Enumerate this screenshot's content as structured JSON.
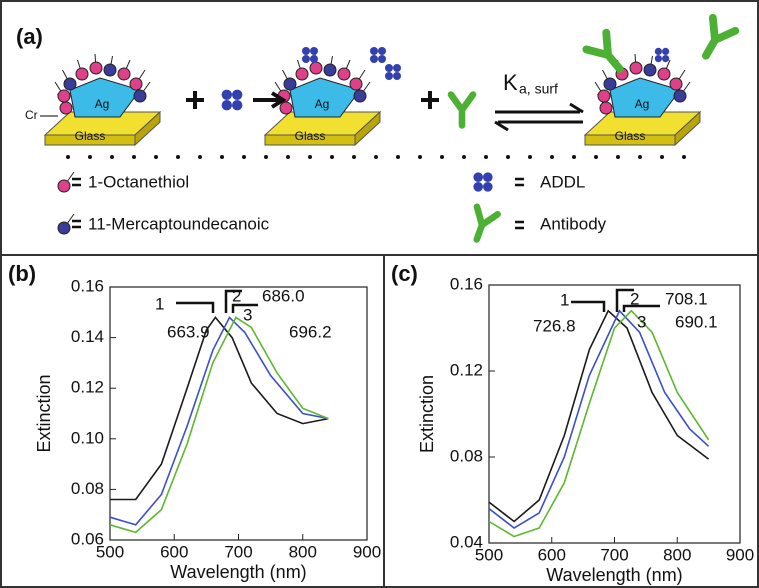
{
  "schematic": {
    "panel_label": "(a)",
    "cr_label": "Cr",
    "ag_labels": [
      "Ag",
      "Ag",
      "Ag"
    ],
    "glass_labels": [
      "Glass",
      "Glass",
      "Glass"
    ],
    "rate_constant": "K",
    "rate_subscript": "a, surf",
    "legend": [
      "1-Octanethiol",
      "11-Mercaptoundecanoic",
      "ADDL",
      "Antibody"
    ]
  },
  "chart_data": [
    {
      "type": "line",
      "panel_label": "(b)",
      "x_label": "Wavelength (nm)",
      "y_label": "Extinction",
      "xlim": [
        500,
        900
      ],
      "xticks": [
        500,
        600,
        700,
        800,
        900
      ],
      "ylim": [
        0.06,
        0.16
      ],
      "yticks": [
        {
          "value": 0.06,
          "label": "0.06"
        },
        {
          "value": 0.08,
          "label": "0.08"
        },
        {
          "value": 0.1,
          "label": "0.10"
        },
        {
          "value": 0.12,
          "label": "0.12"
        },
        {
          "value": 0.14,
          "label": "0.14"
        },
        {
          "value": 0.16,
          "label": "0.16"
        }
      ],
      "series": [
        {
          "color": "#1a1a1a",
          "x": [
            500,
            540,
            580,
            620,
            650,
            664,
            690,
            720,
            760,
            800,
            840
          ],
          "values": [
            0.076,
            0.076,
            0.09,
            0.12,
            0.143,
            0.148,
            0.14,
            0.122,
            0.11,
            0.106,
            0.108
          ]
        },
        {
          "color": "#3a4fd0",
          "x": [
            500,
            540,
            580,
            620,
            660,
            686,
            710,
            750,
            800,
            840
          ],
          "values": [
            0.069,
            0.066,
            0.078,
            0.105,
            0.135,
            0.148,
            0.142,
            0.125,
            0.11,
            0.108
          ]
        },
        {
          "color": "#5cb82c",
          "x": [
            500,
            540,
            580,
            620,
            660,
            696,
            720,
            760,
            800,
            840
          ],
          "values": [
            0.066,
            0.063,
            0.072,
            0.098,
            0.13,
            0.148,
            0.144,
            0.126,
            0.112,
            0.108
          ]
        }
      ],
      "annotations": [
        "1",
        "2",
        "686.0",
        "3",
        "663.9",
        "696.2"
      ]
    },
    {
      "type": "line",
      "panel_label": "(c)",
      "x_label": "Wavelength (nm)",
      "y_label": "Extinction",
      "xlim": [
        500,
        900
      ],
      "xticks": [
        500,
        600,
        700,
        800,
        900
      ],
      "ylim": [
        0.04,
        0.16
      ],
      "yticks": [
        0.04,
        0.08,
        0.12,
        0.16
      ],
      "series": [
        {
          "color": "#1a1a1a",
          "x": [
            500,
            540,
            580,
            620,
            660,
            690,
            720,
            760,
            800,
            850
          ],
          "values": [
            0.059,
            0.05,
            0.06,
            0.09,
            0.13,
            0.148,
            0.14,
            0.11,
            0.09,
            0.079
          ]
        },
        {
          "color": "#3a4fd0",
          "x": [
            500,
            540,
            580,
            620,
            660,
            708,
            740,
            780,
            820,
            850
          ],
          "values": [
            0.056,
            0.047,
            0.054,
            0.08,
            0.118,
            0.148,
            0.138,
            0.11,
            0.093,
            0.085
          ]
        },
        {
          "color": "#5cb82c",
          "x": [
            500,
            540,
            580,
            620,
            660,
            700,
            727,
            760,
            800,
            850
          ],
          "values": [
            0.05,
            0.043,
            0.047,
            0.068,
            0.105,
            0.14,
            0.148,
            0.138,
            0.11,
            0.088
          ]
        }
      ],
      "annotations": [
        "1",
        "2",
        "708.1",
        "3",
        "726.8",
        "690.1"
      ]
    }
  ]
}
